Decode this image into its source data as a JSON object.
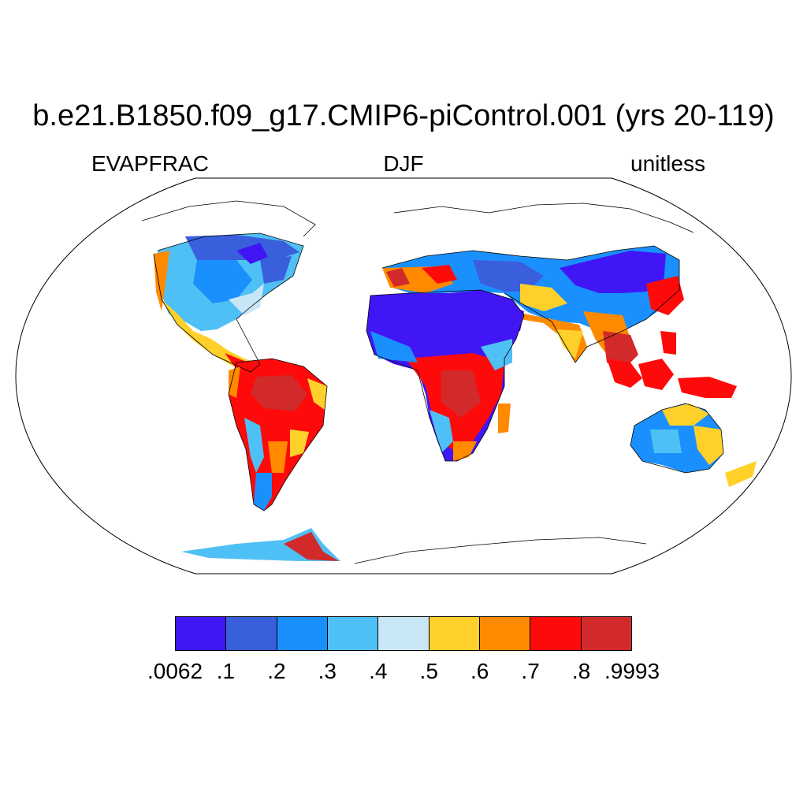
{
  "title": "b.e21.B1850.f09_g17.CMIP6-piControl.001 (yrs 20-119)",
  "left_label": "EVAPFRAC",
  "center_label": "DJF",
  "right_label": "unitless",
  "colorbar": {
    "ticks": [
      ".0062",
      ".1",
      ".2",
      ".3",
      ".4",
      ".5",
      ".6",
      ".7",
      ".8",
      ".9993"
    ],
    "colors": [
      "#4016f5",
      "#3a5fdc",
      "#1a90ff",
      "#4fc0f5",
      "#c8e6f6",
      "#ffd02a",
      "#ff8a00",
      "#ff0a0a",
      "#d22a2a"
    ]
  },
  "map": {
    "projection": "robinson",
    "variable_range": [
      0.0062,
      0.9993
    ],
    "ocean_color": "#ffffff",
    "coastline_color": "#000000"
  }
}
